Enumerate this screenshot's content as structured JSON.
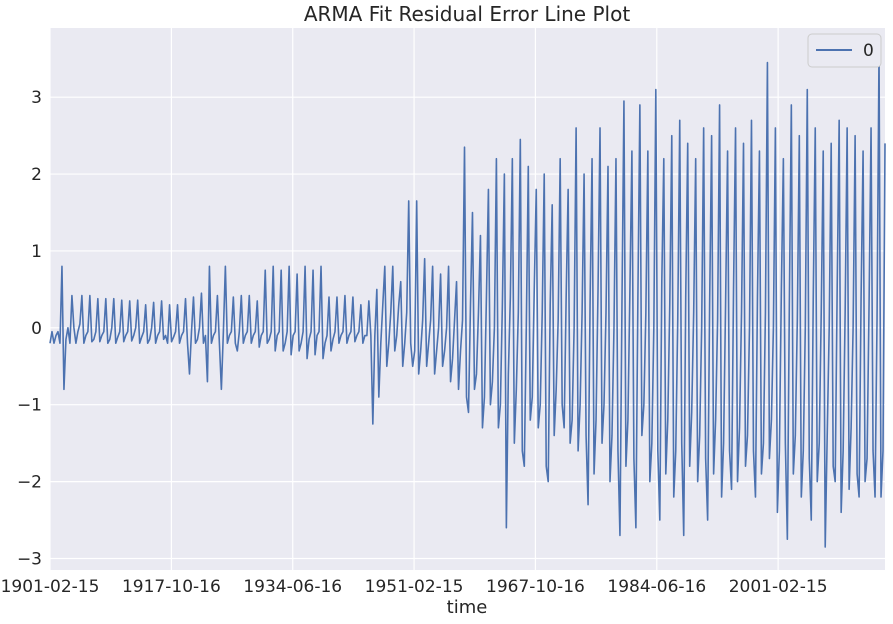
{
  "chart_data": {
    "type": "line",
    "title": "ARMA Fit Residual Error Line Plot",
    "xlabel": "time",
    "ylabel": "",
    "x_ticks": [
      "1901-02-15",
      "1917-10-16",
      "1934-06-16",
      "1951-02-15",
      "1967-10-16",
      "1984-06-16",
      "2001-02-15"
    ],
    "y_ticks": [
      "3",
      "2",
      "1",
      "0",
      "−1",
      "−2",
      "−3"
    ],
    "ylim": [
      -3.15,
      3.9
    ],
    "xlim": [
      1901.12,
      2015.8
    ],
    "grid": true,
    "legend_position": "top-right",
    "series": [
      {
        "name": "0",
        "color": "#4c72b0",
        "start": 1901.12,
        "step": 0.0833,
        "values": [
          -0.2,
          -0.05,
          -0.2,
          -0.1,
          -0.05,
          -0.2,
          0.8,
          -0.8,
          -0.15,
          0.0,
          -0.2,
          0.42,
          0.0,
          -0.2,
          -0.05,
          0.05,
          0.42,
          -0.2,
          -0.1,
          -0.05,
          0.42,
          -0.18,
          -0.15,
          -0.05,
          0.38,
          -0.18,
          -0.1,
          -0.05,
          0.38,
          -0.2,
          -0.15,
          0.0,
          0.38,
          -0.2,
          -0.12,
          -0.05,
          0.36,
          -0.18,
          -0.1,
          -0.05,
          0.35,
          -0.17,
          -0.1,
          0.0,
          0.36,
          -0.2,
          -0.12,
          -0.05,
          0.3,
          -0.2,
          -0.15,
          0.0,
          0.33,
          -0.2,
          -0.1,
          -0.05,
          0.35,
          -0.15,
          -0.1,
          -0.2,
          0.3,
          -0.18,
          -0.12,
          -0.05,
          0.3,
          -0.2,
          -0.1,
          -0.05,
          0.38,
          -0.2,
          -0.6,
          -0.05,
          0.4,
          -0.2,
          -0.15,
          0.0,
          0.45,
          -0.2,
          -0.1,
          -0.7,
          0.8,
          -0.2,
          -0.1,
          -0.05,
          0.42,
          -0.2,
          -0.8,
          -0.05,
          0.8,
          -0.2,
          -0.1,
          -0.05,
          0.4,
          -0.2,
          -0.3,
          -0.05,
          0.42,
          -0.2,
          -0.1,
          -0.05,
          0.42,
          -0.2,
          -0.1,
          -0.05,
          0.35,
          -0.25,
          -0.1,
          -0.05,
          0.75,
          -0.2,
          -0.15,
          -0.05,
          0.8,
          -0.3,
          -0.1,
          -0.05,
          0.75,
          -0.3,
          -0.2,
          -0.05,
          0.8,
          -0.35,
          -0.1,
          -0.05,
          0.7,
          -0.3,
          -0.2,
          -0.05,
          0.8,
          -0.4,
          -0.15,
          -0.05,
          0.75,
          -0.35,
          -0.1,
          -0.05,
          0.8,
          -0.4,
          -0.2,
          -0.1,
          0.4,
          -0.3,
          -0.15,
          -0.05,
          0.4,
          -0.2,
          -0.1,
          -0.05,
          0.42,
          -0.2,
          -0.1,
          -0.05,
          0.4,
          -0.18,
          -0.1,
          -0.05,
          0.3,
          -0.2,
          -0.1,
          -0.1,
          0.35,
          -0.1,
          -1.25,
          -0.1,
          0.5,
          -0.9,
          -0.2,
          0.3,
          0.8,
          -0.5,
          -0.2,
          0.2,
          0.8,
          -0.3,
          -0.1,
          0.3,
          0.6,
          -0.5,
          -0.2,
          0.2,
          1.65,
          -0.2,
          -0.5,
          -0.3,
          1.65,
          -0.6,
          -0.3,
          0.1,
          0.9,
          -0.5,
          -0.2,
          0.1,
          0.8,
          -0.6,
          -0.3,
          0.0,
          0.7,
          -0.5,
          -0.3,
          0.0,
          0.8,
          -0.7,
          -0.4,
          0.1,
          0.6,
          -0.8,
          -0.3,
          0.1,
          2.35,
          -0.9,
          -1.1,
          0.3,
          1.5,
          -0.8,
          -0.6,
          0.2,
          1.2,
          -1.3,
          -0.9,
          0.4,
          1.8,
          -1.0,
          -0.7,
          0.0,
          2.2,
          -1.3,
          -1.0,
          0.3,
          2.0,
          -2.6,
          -0.6,
          0.4,
          2.2,
          -1.5,
          -0.8,
          0.2,
          2.45,
          -1.6,
          -1.8,
          0.0,
          2.1,
          -1.2,
          -0.9,
          0.5,
          1.8,
          -1.3,
          -1.0,
          0.2,
          2.0,
          -1.8,
          -2.0,
          0.3,
          1.6,
          -1.4,
          -0.8,
          0.1,
          2.2,
          -1.0,
          -1.3,
          0.4,
          1.8,
          -1.5,
          -1.2,
          0.0,
          2.6,
          -1.6,
          -1.0,
          0.2,
          2.0,
          -1.4,
          -2.3,
          0.3,
          2.2,
          -1.9,
          -1.2,
          0.5,
          2.6,
          -1.5,
          -1.0,
          0.2,
          2.1,
          -2.0,
          -1.4,
          0.0,
          2.2,
          -1.6,
          -2.7,
          0.3,
          2.95,
          -1.8,
          -1.2,
          0.5,
          2.3,
          -1.7,
          -2.6,
          0.4,
          2.9,
          -1.4,
          -1.0,
          0.2,
          2.3,
          -2.0,
          -1.5,
          0.0,
          3.1,
          -1.6,
          -2.5,
          0.6,
          2.2,
          -1.9,
          -1.2,
          0.3,
          2.5,
          -2.2,
          -1.6,
          0.1,
          2.7,
          -1.5,
          -2.7,
          0.4,
          2.4,
          -1.8,
          -1.1,
          0.2,
          2.2,
          -2.0,
          -1.4,
          0.0,
          2.6,
          -1.7,
          -2.5,
          0.3,
          2.5,
          -1.9,
          -1.2,
          0.1,
          2.9,
          -2.2,
          -1.5,
          0.3,
          2.3,
          -1.6,
          -2.1,
          0.5,
          2.6,
          -2.0,
          -1.3,
          0.2,
          2.4,
          -1.8,
          -1.4,
          0.0,
          2.7,
          -1.6,
          -2.2,
          0.4,
          2.3,
          -1.9,
          -1.5,
          0.2,
          3.45,
          -1.7,
          -1.2,
          0.0,
          2.6,
          -2.4,
          -1.6,
          0.5,
          2.2,
          -1.5,
          -2.75,
          0.3,
          2.9,
          -1.9,
          -1.4,
          0.1,
          2.5,
          -2.2,
          -1.6,
          0.0,
          3.1,
          -1.7,
          -2.5,
          0.4,
          2.6,
          -2.0,
          -1.5,
          0.2,
          2.3,
          -2.85,
          -1.4,
          0.0,
          2.4,
          -1.8,
          -2.0,
          0.5,
          2.7,
          -2.4,
          -1.6,
          0.2,
          2.6,
          -2.1,
          -1.3,
          0.0,
          2.5,
          -1.9,
          -2.2,
          0.4,
          2.3,
          -2.0,
          -1.7,
          0.3,
          2.6,
          -1.6,
          -2.2,
          0.1,
          3.6,
          -2.2,
          -1.6,
          2.4
        ]
      }
    ]
  }
}
